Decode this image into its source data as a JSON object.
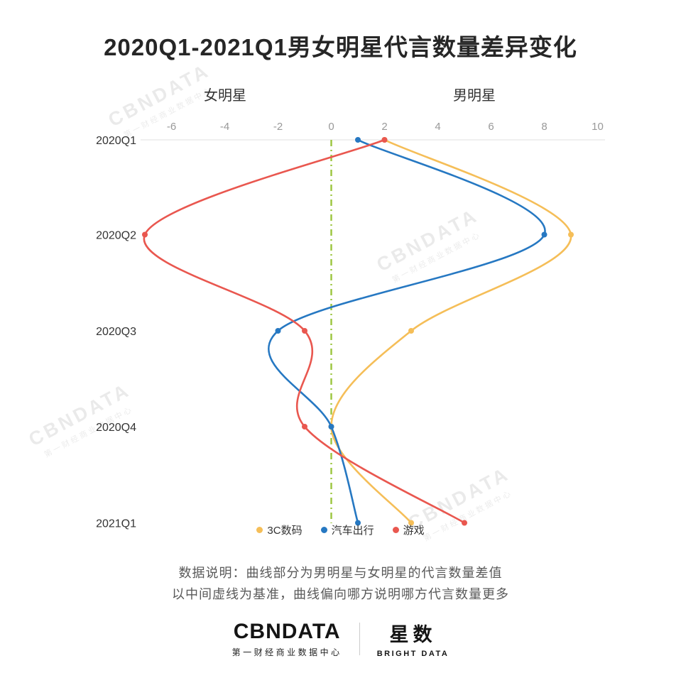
{
  "chart_data": {
    "type": "line",
    "title": "2020Q1-2021Q1男女明星代言数量差异变化",
    "left_label": "女明星",
    "right_label": "男明星",
    "orientation": "time-vertical",
    "categories": [
      "2020Q1",
      "2020Q2",
      "2020Q3",
      "2020Q4",
      "2021Q1"
    ],
    "x_ticks": [
      -6,
      -4,
      -2,
      0,
      2,
      4,
      6,
      8,
      10
    ],
    "xlim": [
      -7.2,
      10.3
    ],
    "baseline": 0,
    "baseline_color": "#9BC53D",
    "grid": false,
    "legend_position": "bottom",
    "series": [
      {
        "name": "3C数码",
        "color": "#F5BE58",
        "values": [
          2,
          9,
          3,
          0,
          3
        ]
      },
      {
        "name": "汽车出行",
        "color": "#2678C2",
        "values": [
          1,
          8,
          -2,
          0,
          1
        ]
      },
      {
        "name": "游戏",
        "color": "#E9574F",
        "values": [
          2,
          -7,
          -1,
          -1,
          5
        ]
      }
    ]
  },
  "notes": {
    "line1": "数据说明：曲线部分为男明星与女明星的代言数量差值",
    "line2": "以中间虚线为基准，曲线偏向哪方说明哪方代言数量更多"
  },
  "footer": {
    "brand": "CBNDATA",
    "brand_sub": "第一财经商业数据中心",
    "brand2": "星数",
    "brand2_sub": "BRIGHT DATA"
  },
  "watermark": {
    "line1": "CBNDATA",
    "line2": "第一财经商业数据中心"
  }
}
